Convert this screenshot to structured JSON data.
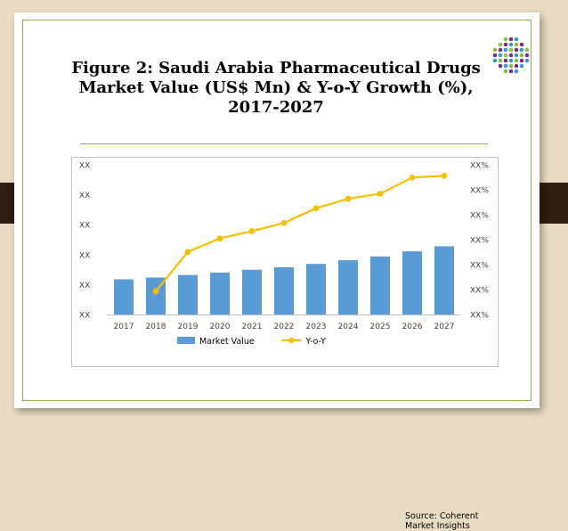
{
  "slide": {
    "title_lines": [
      "Figure 2: Saudi Arabia Pharmaceutical Drugs",
      "Market Value (US$ Mn) & Y-o-Y Growth (%),",
      "2017-2027"
    ],
    "source": "Source: Coherent Market Insights",
    "colors": {
      "background": "#e9dcc3",
      "frame": "#8cb34a",
      "tab": "#2e1e12",
      "bar": "#5b9bd5",
      "line": "#f5c000"
    }
  },
  "chart_data": {
    "type": "bar",
    "categories": [
      "2017",
      "2018",
      "2019",
      "2020",
      "2021",
      "2022",
      "2023",
      "2024",
      "2025",
      "2026",
      "2027"
    ],
    "series": [
      {
        "name": "Market Value",
        "type": "bar",
        "axis": "left",
        "color": "#5b9bd5",
        "values": [
          23.5,
          24.7,
          26.4,
          28.0,
          29.9,
          31.6,
          33.8,
          36.3,
          38.8,
          42.2,
          45.6
        ]
      },
      {
        "name": "Y-o-Y",
        "type": "line",
        "axis": "right",
        "color": "#f5c000",
        "values": [
          null,
          9.3,
          25.1,
          30.5,
          33.4,
          36.7,
          42.6,
          46.4,
          48.4,
          54.9,
          55.6
        ]
      }
    ],
    "left_ticks": [
      "XX",
      "XX",
      "XX",
      "XX",
      "XX",
      "XX"
    ],
    "right_ticks": [
      "XX%",
      "XX%",
      "XX%",
      "XX%",
      "XX%",
      "XX%",
      "XX%"
    ],
    "left_range": [
      0,
      100
    ],
    "right_range": [
      0,
      60
    ],
    "grid": false,
    "legend_position": "bottom",
    "legend": [
      {
        "label": "Market Value",
        "kind": "bar",
        "color": "#5b9bd5"
      },
      {
        "label": "Y-o-Y",
        "kind": "line",
        "color": "#f5c000"
      }
    ]
  }
}
